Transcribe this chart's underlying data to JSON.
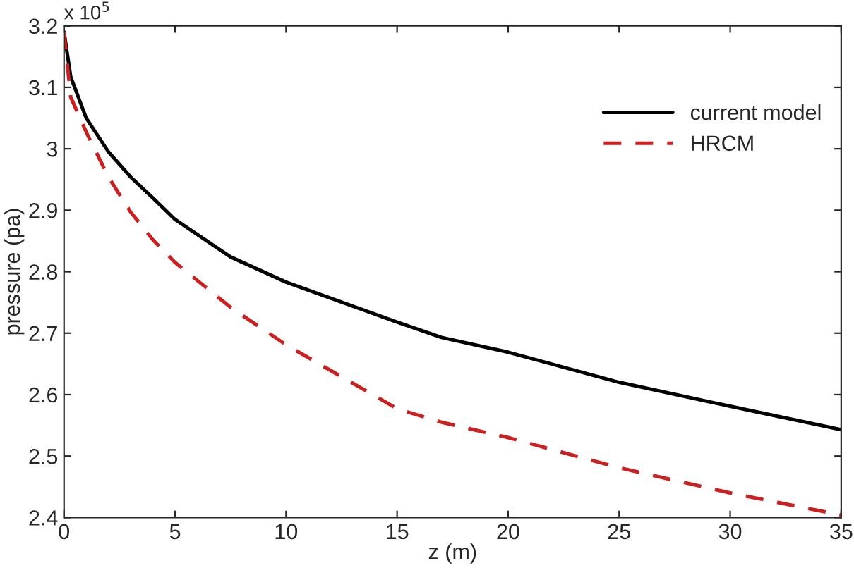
{
  "chart_data": {
    "type": "line",
    "xlabel": "z (m)",
    "ylabel": "pressure (pa)",
    "annotations": [
      "x 10$^{5}$"
    ],
    "series": [
      {
        "name": "current model",
        "color": "#000000",
        "line_style": "solid",
        "x": [
          0,
          0.3,
          1,
          2,
          3,
          4,
          5,
          7.5,
          10,
          15,
          17,
          20,
          25,
          30,
          35
        ],
        "values": [
          3.19,
          3.117,
          3.05,
          2.995,
          2.954,
          2.92,
          2.885,
          2.824,
          2.783,
          2.718,
          2.693,
          2.669,
          2.62,
          2.581,
          2.543
        ]
      },
      {
        "name": "HRCM",
        "color": "#cc1f1f",
        "line_style": "dashed",
        "x": [
          0,
          0.3,
          1,
          2,
          3,
          4,
          5,
          7.5,
          10,
          15,
          17,
          20,
          25,
          30,
          35
        ],
        "values": [
          3.19,
          3.084,
          3.027,
          2.954,
          2.897,
          2.852,
          2.815,
          2.742,
          2.681,
          2.577,
          2.555,
          2.53,
          2.481,
          2.44,
          2.404
        ]
      }
    ],
    "xlim": [
      0,
      35
    ],
    "xticks": [
      0,
      5,
      10,
      15,
      20,
      25,
      30,
      35
    ],
    "ylim": [
      2.4,
      3.2
    ],
    "yticks": [
      2.4,
      2.5,
      2.6,
      2.7,
      2.8,
      2.9,
      3,
      3.1,
      3.2
    ],
    "grid": false,
    "legend": "top right",
    "marker": "none"
  }
}
